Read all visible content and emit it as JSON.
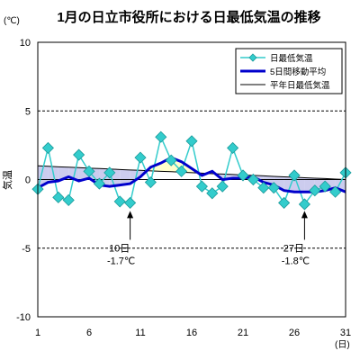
{
  "chart_data": {
    "type": "line",
    "title": "1月の日立市役所における日最低気温の推移",
    "unit_label": "(℃)",
    "ylabel": "気温",
    "xunit": "(日)",
    "ylim": [
      -10,
      10
    ],
    "yticks": [
      10,
      5,
      0,
      -5,
      -10
    ],
    "xlim": [
      1,
      31
    ],
    "xticks": [
      1,
      6,
      11,
      16,
      21,
      26,
      31
    ],
    "grid_dashed_y": [
      5,
      -5
    ],
    "legend_position": "top-right",
    "x": [
      1,
      2,
      3,
      4,
      5,
      6,
      7,
      8,
      9,
      10,
      11,
      12,
      13,
      14,
      15,
      16,
      17,
      18,
      19,
      20,
      21,
      22,
      23,
      24,
      25,
      26,
      27,
      28,
      29,
      30,
      31
    ],
    "series": [
      {
        "name": "日最低気温",
        "color": "#33cccc",
        "marker": "diamond",
        "values": [
          -0.7,
          2.3,
          -1.3,
          -1.5,
          1.8,
          0.6,
          -0.3,
          0.5,
          -1.6,
          -1.7,
          1.6,
          -0.2,
          3.1,
          1.4,
          0.6,
          2.8,
          -0.5,
          -1.0,
          -0.5,
          2.3,
          0.3,
          0.0,
          -0.6,
          -0.6,
          -1.7,
          0.3,
          -1.8,
          -0.8,
          -0.5,
          -0.9,
          0.5
        ]
      },
      {
        "name": "5日間移動平均",
        "color": "#0000cc",
        "values": [
          -0.6,
          -0.2,
          -0.1,
          0.2,
          -0.1,
          0.1,
          -0.4,
          -0.5,
          -0.4,
          -0.3,
          0.2,
          0.9,
          1.2,
          1.6,
          1.3,
          0.8,
          0.3,
          0.6,
          0.0,
          0.1,
          0.1,
          0.2,
          -0.2,
          -0.4,
          -0.8,
          -0.9,
          -0.9,
          -0.9,
          -0.8,
          -0.6,
          -0.9
        ]
      },
      {
        "name": "平年日最低気温",
        "color": "#000000",
        "values": [
          1.0,
          0.97,
          0.93,
          0.9,
          0.87,
          0.83,
          0.8,
          0.77,
          0.73,
          0.7,
          0.67,
          0.63,
          0.6,
          0.57,
          0.53,
          0.5,
          0.47,
          0.43,
          0.4,
          0.37,
          0.33,
          0.3,
          0.27,
          0.23,
          0.2,
          0.17,
          0.13,
          0.1,
          0.07,
          0.03,
          0.0
        ]
      }
    ],
    "fill_below_normal_color": "#ccccee",
    "fill_above_normal_color": "#ffffcc",
    "annotations": [
      {
        "x": 10,
        "date_label": "10日",
        "value_label": "-1.7℃"
      },
      {
        "x": 27,
        "date_label": "27日",
        "value_label": "-1.8℃"
      }
    ]
  }
}
